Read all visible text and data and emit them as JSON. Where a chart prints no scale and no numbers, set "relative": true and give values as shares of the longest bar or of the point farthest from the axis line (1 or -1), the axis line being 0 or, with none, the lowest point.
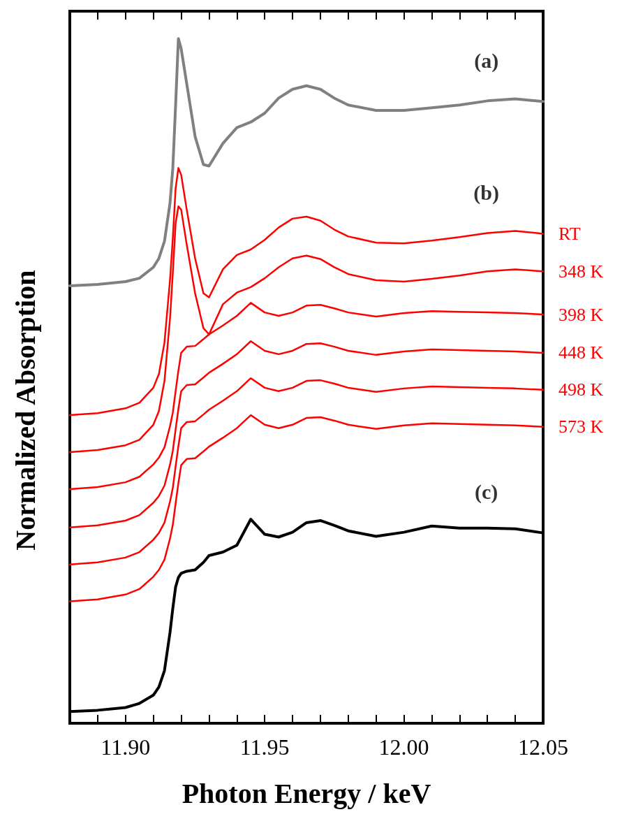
{
  "chart_data": {
    "type": "line",
    "xlabel": "Photon Energy / keV",
    "ylabel": "Normalized Absorption",
    "relative": true,
    "legend": false,
    "grid": false,
    "marker": "none",
    "line_style": "solid",
    "tick_labels": "x",
    "x": [
      11.88,
      11.89,
      11.9,
      11.905,
      11.91,
      11.912,
      11.914,
      11.916,
      11.917,
      11.918,
      11.919,
      11.92,
      11.922,
      11.925,
      11.928,
      11.93,
      11.935,
      11.94,
      11.945,
      11.95,
      11.955,
      11.96,
      11.965,
      11.97,
      11.975,
      11.98,
      11.99,
      12.0,
      12.01,
      12.02,
      12.03,
      12.04,
      12.05
    ],
    "xlim": [
      11.88,
      12.05
    ],
    "xticks": [
      {
        "value": 11.89,
        "label": null
      },
      {
        "value": 11.9,
        "label": "11.90"
      },
      {
        "value": 11.91,
        "label": null
      },
      {
        "value": 11.92,
        "label": null
      },
      {
        "value": 11.93,
        "label": null
      },
      {
        "value": 11.94,
        "label": null
      },
      {
        "value": 11.95,
        "label": "11.95"
      },
      {
        "value": 11.96,
        "label": null
      },
      {
        "value": 11.97,
        "label": null
      },
      {
        "value": 11.98,
        "label": null
      },
      {
        "value": 11.99,
        "label": null
      },
      {
        "value": 12.0,
        "label": "12.00"
      },
      {
        "value": 12.01,
        "label": null
      },
      {
        "value": 12.02,
        "label": null
      },
      {
        "value": 12.03,
        "label": null
      },
      {
        "value": 12.04,
        "label": null
      },
      {
        "value": 12.05,
        "label": "12.05"
      }
    ],
    "series": [
      {
        "color": "#808080",
        "values": [
          0.639,
          0.641,
          0.645,
          0.65,
          0.666,
          0.679,
          0.704,
          0.76,
          0.811,
          0.903,
          1,
          0.985,
          0.934,
          0.857,
          0.816,
          0.814,
          0.847,
          0.87,
          0.878,
          0.891,
          0.913,
          0.926,
          0.931,
          0.926,
          0.913,
          0.903,
          0.895,
          0.895,
          0.899,
          0.903,
          0.909,
          0.912,
          0.908
        ]
      },
      {
        "name": "RT",
        "color": "#ff0000",
        "values": [
          0.45,
          0.453,
          0.46,
          0.468,
          0.49,
          0.51,
          0.556,
          0.648,
          0.709,
          0.781,
          0.811,
          0.801,
          0.75,
          0.679,
          0.628,
          0.622,
          0.663,
          0.684,
          0.692,
          0.706,
          0.724,
          0.737,
          0.74,
          0.734,
          0.721,
          0.711,
          0.702,
          0.701,
          0.705,
          0.71,
          0.716,
          0.719,
          0.715
        ]
      },
      {
        "name": "348 K",
        "color": "#ff0000",
        "values": [
          0.396,
          0.399,
          0.406,
          0.414,
          0.436,
          0.456,
          0.5,
          0.592,
          0.658,
          0.73,
          0.755,
          0.75,
          0.699,
          0.628,
          0.577,
          0.568,
          0.612,
          0.629,
          0.637,
          0.65,
          0.666,
          0.679,
          0.683,
          0.678,
          0.666,
          0.656,
          0.647,
          0.645,
          0.649,
          0.654,
          0.66,
          0.663,
          0.66
        ]
      },
      {
        "name": "398 K",
        "color": "#ff0000",
        "values": [
          0.342,
          0.345,
          0.352,
          0.36,
          0.378,
          0.388,
          0.403,
          0.434,
          0.454,
          0.485,
          0.515,
          0.541,
          0.55,
          0.551,
          0.561,
          0.568,
          0.581,
          0.595,
          0.614,
          0.6,
          0.595,
          0.6,
          0.61,
          0.611,
          0.606,
          0.6,
          0.594,
          0.599,
          0.602,
          0.601,
          0.6,
          0.599,
          0.597
        ]
      },
      {
        "name": "448 K",
        "color": "#ff0000",
        "values": [
          0.286,
          0.289,
          0.296,
          0.304,
          0.322,
          0.332,
          0.347,
          0.378,
          0.398,
          0.429,
          0.459,
          0.485,
          0.494,
          0.495,
          0.505,
          0.512,
          0.525,
          0.539,
          0.558,
          0.544,
          0.539,
          0.544,
          0.554,
          0.555,
          0.55,
          0.544,
          0.538,
          0.543,
          0.546,
          0.545,
          0.544,
          0.543,
          0.541
        ]
      },
      {
        "name": "498 K",
        "color": "#ff0000",
        "values": [
          0.232,
          0.235,
          0.242,
          0.25,
          0.268,
          0.278,
          0.293,
          0.324,
          0.344,
          0.375,
          0.405,
          0.431,
          0.44,
          0.441,
          0.451,
          0.458,
          0.471,
          0.485,
          0.504,
          0.49,
          0.485,
          0.49,
          0.5,
          0.501,
          0.496,
          0.49,
          0.484,
          0.489,
          0.492,
          0.491,
          0.49,
          0.489,
          0.487
        ]
      },
      {
        "name": "573 K",
        "color": "#ff0000",
        "values": [
          0.178,
          0.181,
          0.188,
          0.196,
          0.214,
          0.224,
          0.239,
          0.27,
          0.29,
          0.321,
          0.351,
          0.377,
          0.386,
          0.387,
          0.397,
          0.404,
          0.417,
          0.431,
          0.45,
          0.436,
          0.431,
          0.436,
          0.446,
          0.447,
          0.442,
          0.436,
          0.43,
          0.435,
          0.438,
          0.437,
          0.436,
          0.435,
          0.433
        ]
      },
      {
        "color": "#000000",
        "values": [
          0.017,
          0.019,
          0.023,
          0.029,
          0.041,
          0.053,
          0.077,
          0.133,
          0.168,
          0.199,
          0.213,
          0.219,
          0.222,
          0.224,
          0.235,
          0.245,
          0.25,
          0.26,
          0.298,
          0.276,
          0.272,
          0.279,
          0.293,
          0.296,
          0.289,
          0.281,
          0.273,
          0.279,
          0.288,
          0.285,
          0.285,
          0.284,
          0.278
        ]
      }
    ],
    "annotations": [
      "(a)",
      "(b)",
      "(c)"
    ]
  }
}
